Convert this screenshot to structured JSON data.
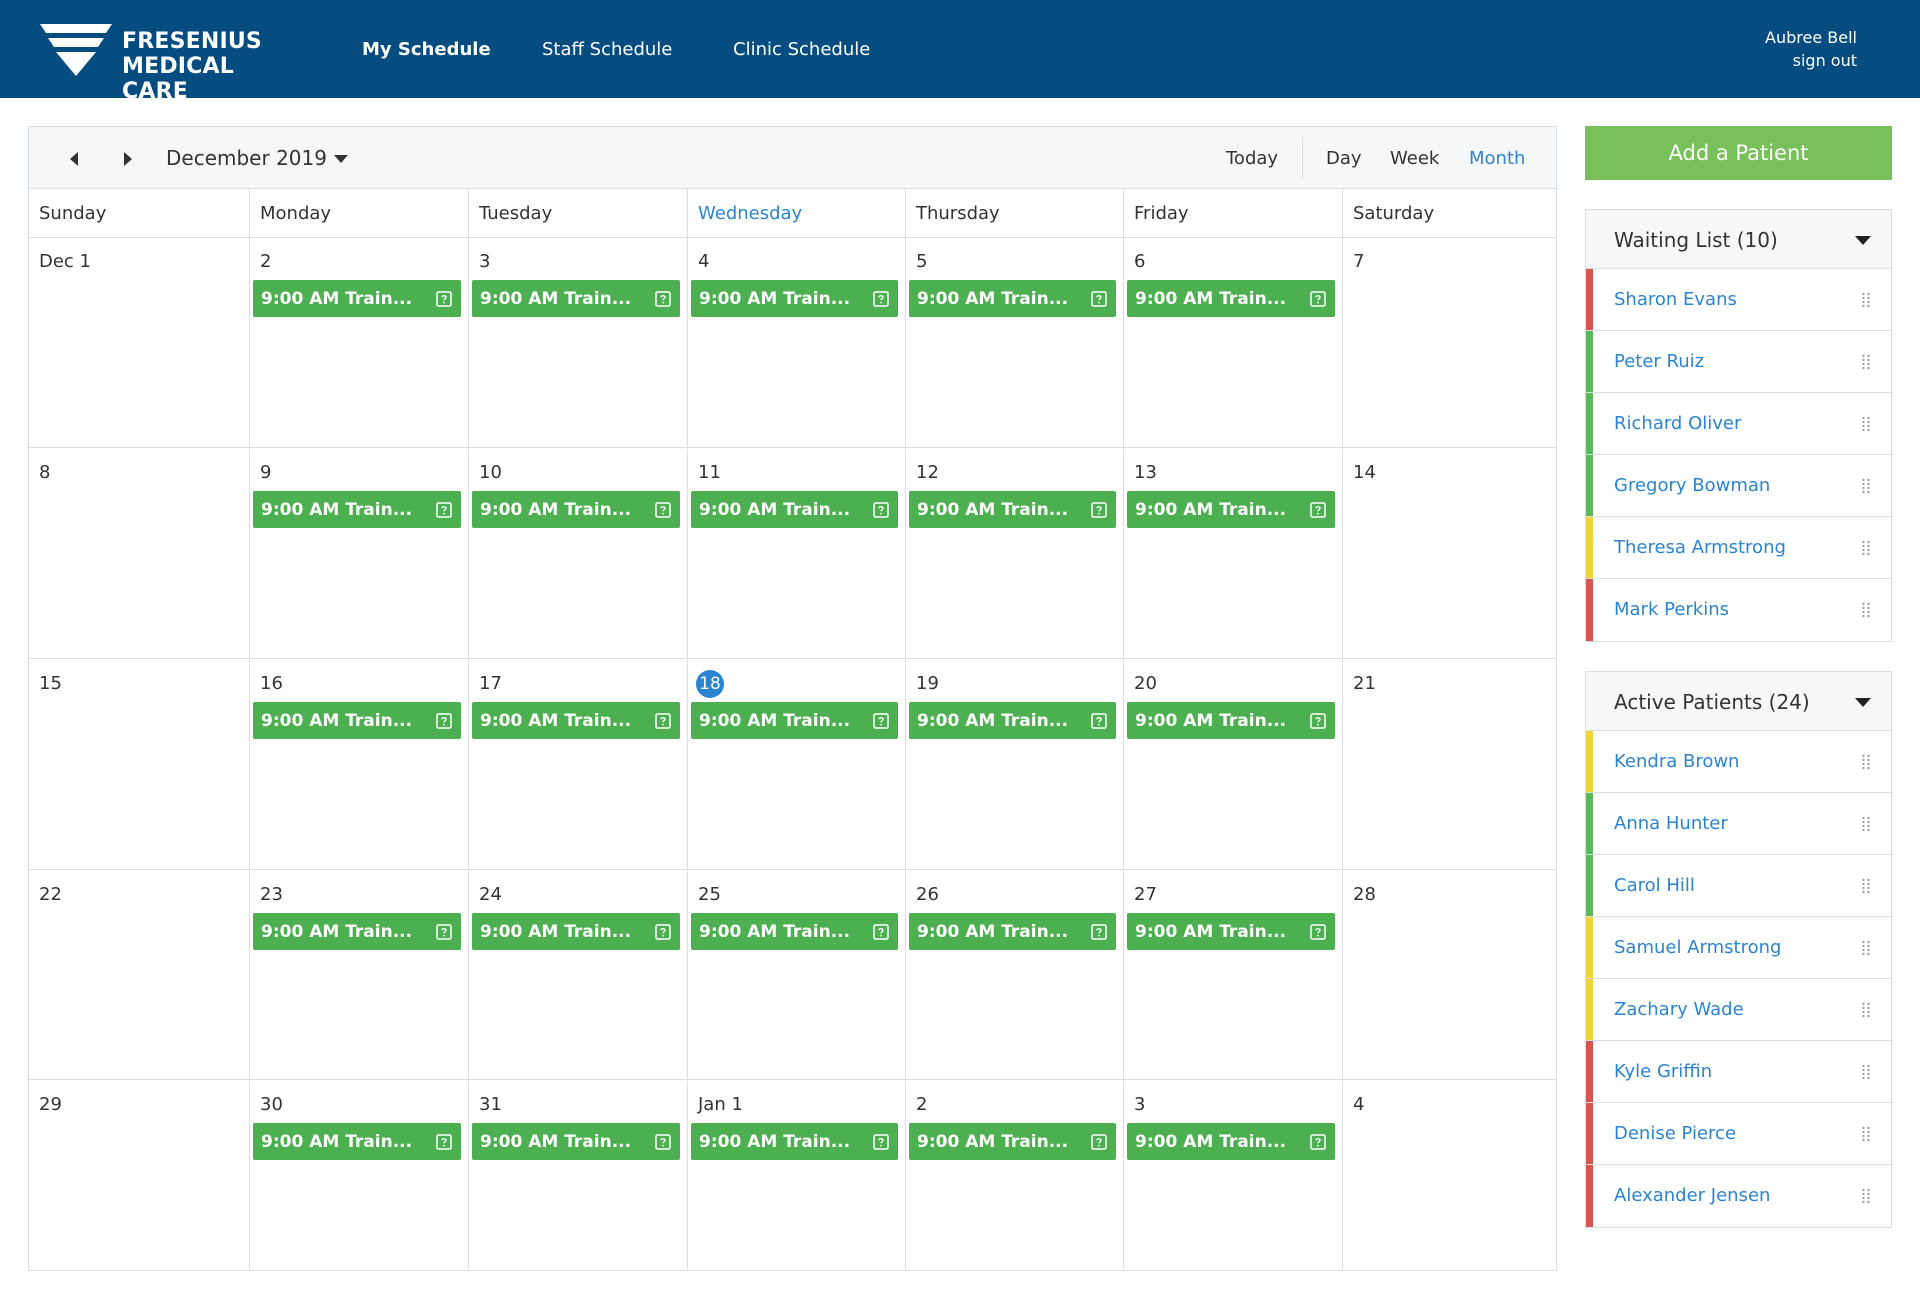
{
  "header": {
    "logo_line1": "FRESENIUS",
    "logo_line2": "MEDICAL CARE",
    "nav": [
      {
        "label": "My Schedule",
        "active": true
      },
      {
        "label": "Staff Schedule",
        "active": false
      },
      {
        "label": "Clinic Schedule",
        "active": false
      }
    ],
    "user_name": "Aubree Bell",
    "sign_out": "sign out"
  },
  "calendar": {
    "month_label": "December 2019",
    "views": {
      "today": "Today",
      "day": "Day",
      "week": "Week",
      "month": "Month",
      "active": "Month"
    },
    "days_of_week": [
      "Sunday",
      "Monday",
      "Tuesday",
      "Wednesday",
      "Thursday",
      "Friday",
      "Saturday"
    ],
    "today_column": 3,
    "event_label": "9:00 AM Train...",
    "weeks": [
      [
        {
          "d": "Dec 1",
          "e": false
        },
        {
          "d": "2",
          "e": true
        },
        {
          "d": "3",
          "e": true
        },
        {
          "d": "4",
          "e": true
        },
        {
          "d": "5",
          "e": true
        },
        {
          "d": "6",
          "e": true
        },
        {
          "d": "7",
          "e": false
        }
      ],
      [
        {
          "d": "8",
          "e": false
        },
        {
          "d": "9",
          "e": true
        },
        {
          "d": "10",
          "e": true
        },
        {
          "d": "11",
          "e": true
        },
        {
          "d": "12",
          "e": true
        },
        {
          "d": "13",
          "e": true
        },
        {
          "d": "14",
          "e": false
        }
      ],
      [
        {
          "d": "15",
          "e": false
        },
        {
          "d": "16",
          "e": true
        },
        {
          "d": "17",
          "e": true
        },
        {
          "d": "18",
          "e": true,
          "today": true
        },
        {
          "d": "19",
          "e": true
        },
        {
          "d": "20",
          "e": true
        },
        {
          "d": "21",
          "e": false
        }
      ],
      [
        {
          "d": "22",
          "e": false
        },
        {
          "d": "23",
          "e": true
        },
        {
          "d": "24",
          "e": true
        },
        {
          "d": "25",
          "e": true
        },
        {
          "d": "26",
          "e": true
        },
        {
          "d": "27",
          "e": true
        },
        {
          "d": "28",
          "e": false
        }
      ],
      [
        {
          "d": "29",
          "e": false
        },
        {
          "d": "30",
          "e": true
        },
        {
          "d": "31",
          "e": true
        },
        {
          "d": "Jan 1",
          "e": true
        },
        {
          "d": "2",
          "e": true
        },
        {
          "d": "3",
          "e": true
        },
        {
          "d": "4",
          "e": false
        }
      ]
    ]
  },
  "sidebar": {
    "add_patient": "Add a Patient",
    "waiting_list": {
      "title": "Waiting List (10)",
      "patients": [
        {
          "name": "Sharon Evans",
          "status": "#d9534f"
        },
        {
          "name": "Peter Ruiz",
          "status": "#5cb85c"
        },
        {
          "name": "Richard Oliver",
          "status": "#5cb85c"
        },
        {
          "name": "Gregory Bowman",
          "status": "#5cb85c"
        },
        {
          "name": "Theresa Armstrong",
          "status": "#f0d43a"
        },
        {
          "name": "Mark Perkins",
          "status": "#d9534f"
        }
      ]
    },
    "active_patients": {
      "title": "Active Patients (24)",
      "patients": [
        {
          "name": "Kendra Brown",
          "status": "#f0d43a"
        },
        {
          "name": "Anna Hunter",
          "status": "#5cb85c"
        },
        {
          "name": "Carol Hill",
          "status": "#5cb85c"
        },
        {
          "name": "Samuel Armstrong",
          "status": "#f0d43a"
        },
        {
          "name": "Zachary Wade",
          "status": "#f0d43a"
        },
        {
          "name": "Kyle Griffin",
          "status": "#d9534f"
        },
        {
          "name": "Denise Pierce",
          "status": "#d9534f"
        },
        {
          "name": "Alexander Jensen",
          "status": "#d9534f"
        }
      ]
    }
  },
  "colors": {
    "header_bg": "#054d80",
    "accent_blue": "#2b84d1",
    "event_green": "#4caf50",
    "add_button_green": "#78c15a"
  },
  "icons": {
    "prev": "chevron-left-icon",
    "next": "chevron-right-icon",
    "event": "question-square-icon",
    "drag": "drag-handle-icon",
    "dropdown": "caret-down-icon"
  }
}
